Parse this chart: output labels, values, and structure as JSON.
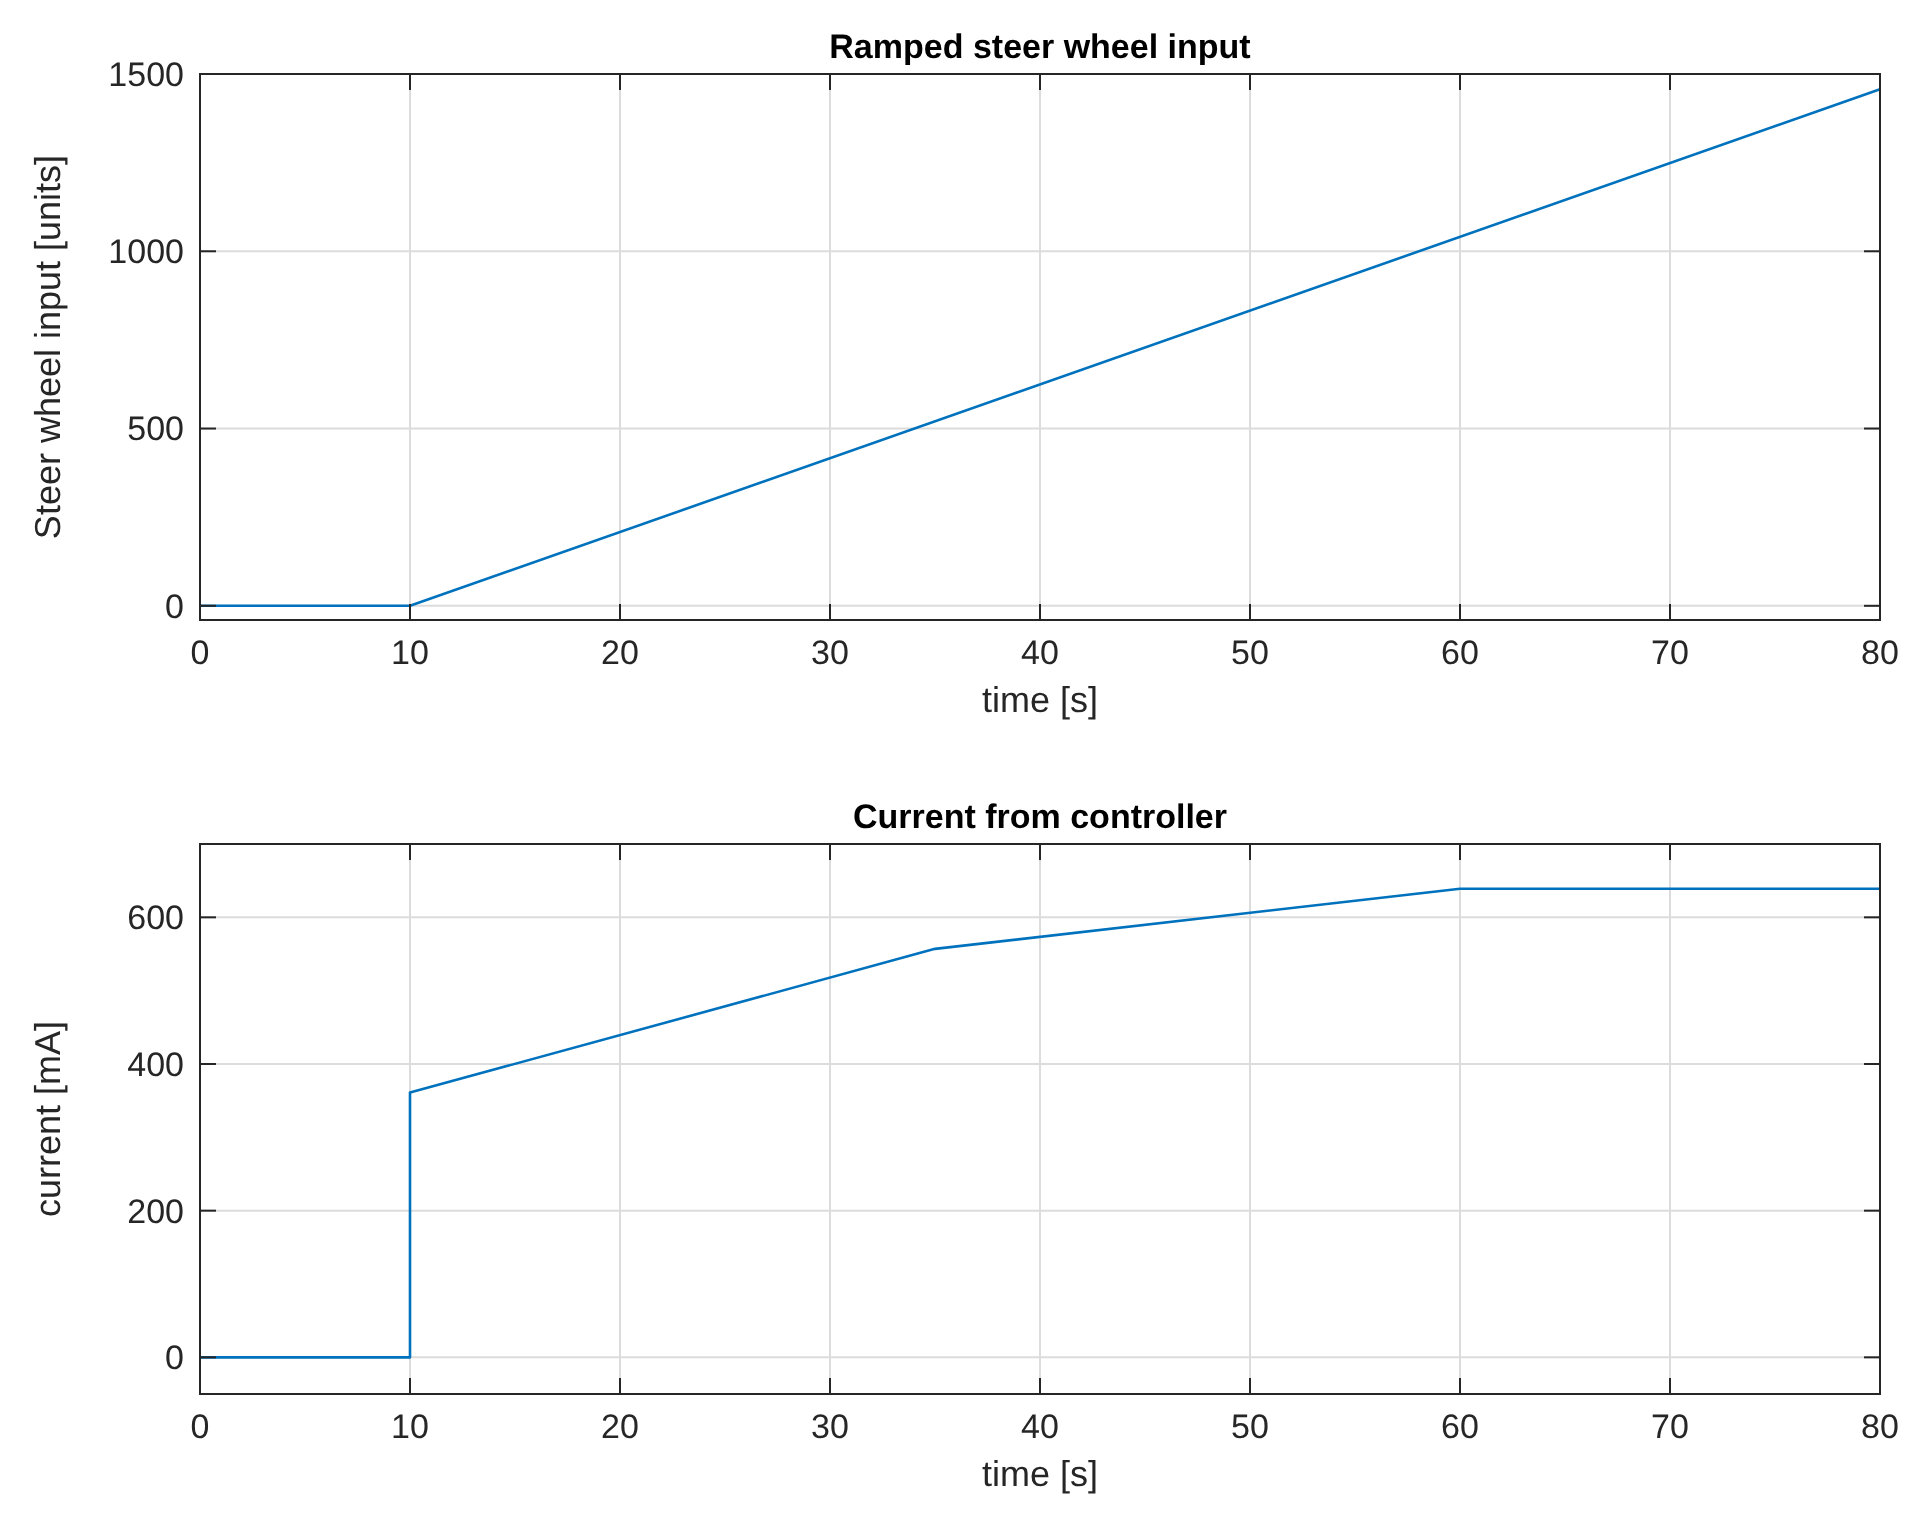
{
  "chart_data": [
    {
      "type": "line",
      "title": "Ramped steer wheel input",
      "xlabel": "time [s]",
      "ylabel": "Steer wheel input [units]",
      "x": [
        0,
        10,
        80
      ],
      "series": [
        {
          "color": "#0072bd",
          "values": [
            0,
            0,
            1457
          ]
        }
      ],
      "xlim": [
        0,
        80
      ],
      "xticks": [
        0,
        10,
        20,
        30,
        40,
        50,
        60,
        70,
        80
      ],
      "ylim": [
        -40,
        1500
      ],
      "yticks": [
        0,
        500,
        1000,
        1500
      ],
      "grid": true
    },
    {
      "type": "line",
      "title": "Current from controller",
      "xlabel": "time [s]",
      "ylabel": "current [mA]",
      "x": [
        0,
        10,
        10,
        35,
        60,
        80
      ],
      "series": [
        {
          "color": "#0072bd",
          "values": [
            0,
            0,
            361,
            557,
            639,
            639
          ]
        }
      ],
      "xlim": [
        0,
        80
      ],
      "xticks": [
        0,
        10,
        20,
        30,
        40,
        50,
        60,
        70,
        80
      ],
      "ylim": [
        -50,
        700
      ],
      "yticks": [
        0,
        200,
        400,
        600
      ],
      "grid": true
    }
  ]
}
